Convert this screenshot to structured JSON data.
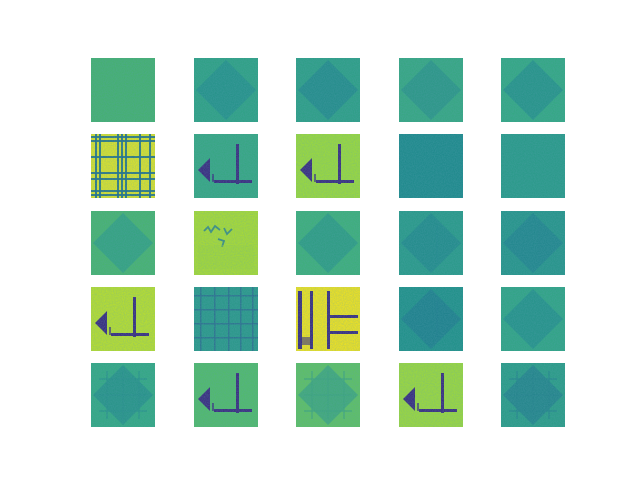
{
  "figure": {
    "rows": 5,
    "cols": 5,
    "colormap": "viridis",
    "background": "#ffffff",
    "palette": {
      "dark": "#3b2a7e",
      "blue": "#2e6d8e",
      "teal": "#21908d",
      "green": "#35b779",
      "lime": "#8fd744",
      "yellow": "#f5e61f"
    },
    "panels": [
      {
        "base": "#45b070",
        "motif": "noise",
        "alt": "#3aa37a"
      },
      {
        "base": "#2fa184",
        "motif": "diamond",
        "alt": "#25918b"
      },
      {
        "base": "#2e9f86",
        "motif": "diamond",
        "alt": "#23898c"
      },
      {
        "base": "#37a782",
        "motif": "diamond",
        "alt": "#2c9488"
      },
      {
        "base": "#34a883",
        "motif": "diamond",
        "alt": "#26908b"
      },
      {
        "base": "#dbe22a",
        "motif": "plaid",
        "alt": "#1f6f8b"
      },
      {
        "base": "#37a782",
        "motif": "lshape",
        "alt": "#3b3f87"
      },
      {
        "base": "#9bd93c",
        "motif": "lshape",
        "alt": "#3b3f87"
      },
      {
        "base": "#1f8a8c",
        "motif": "noise",
        "alt": "#257d8e"
      },
      {
        "base": "#2a9a89",
        "motif": "noise",
        "alt": "#238a8c"
      },
      {
        "base": "#48b36f",
        "motif": "diamond",
        "alt": "#32a084"
      },
      {
        "base": "#a9db33",
        "motif": "scribble",
        "alt": "#3f8f80"
      },
      {
        "base": "#3eaf7a",
        "motif": "diamond",
        "alt": "#2d9a85"
      },
      {
        "base": "#2a9a89",
        "motif": "diamond-dots",
        "alt": "#228a8c"
      },
      {
        "base": "#27958a",
        "motif": "diamond-dots",
        "alt": "#22858d"
      },
      {
        "base": "#b8de2e",
        "motif": "lshape",
        "alt": "#3b3f87"
      },
      {
        "base": "#2b9889",
        "motif": "grid",
        "alt": "#2c6b8e"
      },
      {
        "base": "#f0e21f",
        "motif": "ladder",
        "alt": "#3a3f88"
      },
      {
        "base": "#219189",
        "motif": "diamond-dots",
        "alt": "#1f7e8d"
      },
      {
        "base": "#31a485",
        "motif": "diamond",
        "alt": "#25918b"
      },
      {
        "base": "#34a883",
        "motif": "diamond-grid",
        "alt": "#27908a"
      },
      {
        "base": "#52ba6b",
        "motif": "lshape",
        "alt": "#3b3f87"
      },
      {
        "base": "#5fc064",
        "motif": "diamond-grid",
        "alt": "#3da47e"
      },
      {
        "base": "#9cd83d",
        "motif": "lshape",
        "alt": "#3b3f87"
      },
      {
        "base": "#2c9c87",
        "motif": "diamond-grid",
        "alt": "#24838c"
      }
    ]
  }
}
